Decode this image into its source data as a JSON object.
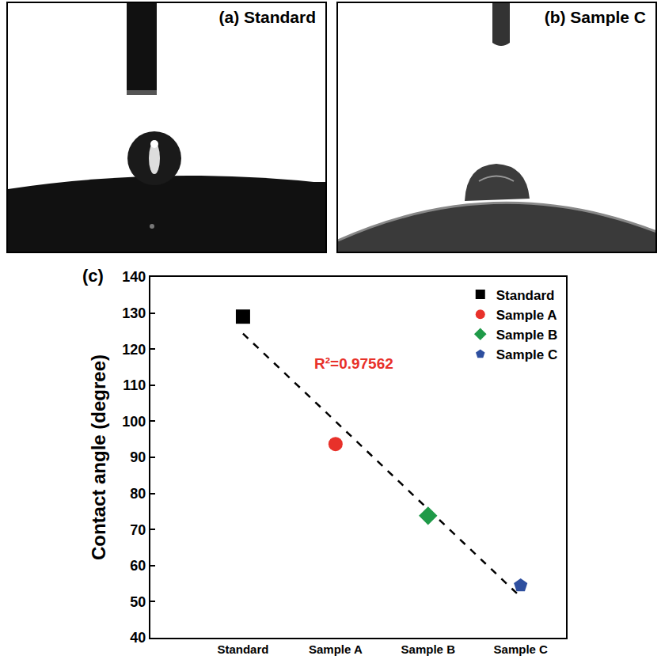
{
  "panels": {
    "a": "(a) Standard",
    "b": "(b) Sample C",
    "c": "(c)"
  },
  "chart_data": {
    "type": "scatter",
    "y_label": "Contact angle (degree)",
    "categories": [
      "Standard",
      "Sample A",
      "Sample B",
      "Sample C"
    ],
    "series": [
      {
        "name": "Standard",
        "color": "#000000",
        "marker": "square",
        "values": [
          129,
          null,
          null,
          null
        ]
      },
      {
        "name": "Sample A",
        "color": "#e8312a",
        "marker": "circle",
        "values": [
          null,
          93.7,
          null,
          null
        ]
      },
      {
        "name": "Sample B",
        "color": "#1f9a48",
        "marker": "diamond",
        "values": [
          null,
          null,
          73.8,
          null
        ]
      },
      {
        "name": "Sample C",
        "color": "#2e4f9f",
        "marker": "pentagon",
        "values": [
          null,
          null,
          null,
          54.5
        ]
      }
    ],
    "trend_line": {
      "values": [
        124.3,
        99.9,
        75.6,
        51.3
      ],
      "color": "#000000",
      "line_style": "dash"
    },
    "annotations": [
      {
        "text": "R²=0.97562",
        "color": "#e8312a"
      }
    ],
    "ylim": [
      40,
      140
    ],
    "yticks": [
      40,
      50,
      60,
      70,
      80,
      90,
      100,
      110,
      120,
      130,
      140
    ],
    "grid": false,
    "legend": "top right"
  }
}
